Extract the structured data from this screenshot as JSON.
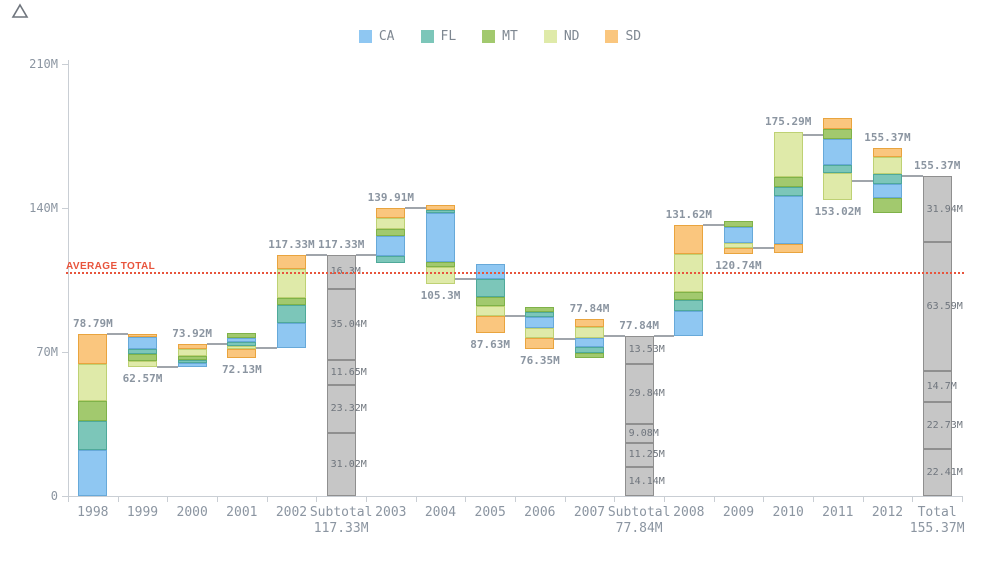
{
  "legend": {
    "items": [
      {
        "label": "CA",
        "color": "#8fc7f2"
      },
      {
        "label": "FL",
        "color": "#7cc6b9"
      },
      {
        "label": "MT",
        "color": "#a2c96e"
      },
      {
        "label": "ND",
        "color": "#dfeaa9"
      },
      {
        "label": "SD",
        "color": "#fac67e"
      }
    ]
  },
  "axis": {
    "y_ticks": [
      {
        "value": 0,
        "label": "0"
      },
      {
        "value": 70,
        "label": "70M"
      },
      {
        "value": 140,
        "label": "140M"
      },
      {
        "value": 210,
        "label": "210M"
      }
    ]
  },
  "chart_data": {
    "type": "waterfall",
    "unit": "M",
    "ylim": [
      0,
      210
    ],
    "legend_position": "top",
    "grid": false,
    "series": [
      "CA",
      "FL",
      "MT",
      "ND",
      "SD"
    ],
    "colors": {
      "CA": "#8fc7f2",
      "FL": "#7cc6b9",
      "MT": "#a2c96e",
      "ND": "#dfeaa9",
      "SD": "#fac67e",
      "subtotal": "#c6c6c6"
    },
    "borders": {
      "CA": "#67a9d9",
      "FL": "#4fa99a",
      "MT": "#7fb249",
      "ND": "#bed174",
      "SD": "#e9a43e",
      "subtotal": "#8f8f8f"
    },
    "average_line": {
      "label": "AVERAGE TOTAL",
      "value": 108.52,
      "color": "#e8543c"
    },
    "bars": [
      {
        "category": "1998",
        "xlabel_lines": [
          "1998"
        ],
        "kind": "flow",
        "bottom": 0,
        "top": 78.79,
        "value_label": "78.79M",
        "value_label_pos": "above",
        "segments": [
          {
            "series": "SD",
            "value": 14.3
          },
          {
            "series": "ND",
            "value": 18.6
          },
          {
            "series": "MT",
            "value": 9.2
          },
          {
            "series": "FL",
            "value": 13.8
          },
          {
            "series": "CA",
            "value": 22.89
          }
        ]
      },
      {
        "category": "1999",
        "xlabel_lines": [
          "1999"
        ],
        "kind": "flow",
        "bottom": 62.57,
        "top": 78.79,
        "value_label": "62.57M",
        "value_label_pos": "below",
        "segments": [
          {
            "series": "SD",
            "value": 1.1
          },
          {
            "series": "CA",
            "value": 6.6
          },
          {
            "series": "FL",
            "value": 1.8
          },
          {
            "series": "MT",
            "value": 3.8
          },
          {
            "series": "ND",
            "value": 2.92
          }
        ]
      },
      {
        "category": "2000",
        "xlabel_lines": [
          "2000"
        ],
        "kind": "flow",
        "bottom": 62.57,
        "top": 73.92,
        "value_label": "73.92M",
        "value_label_pos": "above",
        "segments": [
          {
            "series": "SD",
            "value": 2.5
          },
          {
            "series": "ND",
            "value": 4.45
          },
          {
            "series": "MT",
            "value": 1.5
          },
          {
            "series": "FL",
            "value": 1.0
          },
          {
            "series": "CA",
            "value": 1.9
          }
        ]
      },
      {
        "category": "2001",
        "xlabel_lines": [
          "2001"
        ],
        "kind": "flow",
        "bottom": 66.9,
        "top": 79.1,
        "value_label": "72.13M",
        "value_label_pos": "below",
        "segments": [
          {
            "series": "MT",
            "value": 2.1
          },
          {
            "series": "CA",
            "value": 1.5
          },
          {
            "series": "FL",
            "value": 1.5
          },
          {
            "series": "ND",
            "value": 1.3
          },
          {
            "series": "SD",
            "value": 5.8
          }
        ]
      },
      {
        "category": "2002",
        "xlabel_lines": [
          "2002"
        ],
        "kind": "flow",
        "bottom": 72.13,
        "top": 117.33,
        "value_label": "117.33M",
        "value_label_pos": "above",
        "segments": [
          {
            "series": "SD",
            "value": 7.0
          },
          {
            "series": "ND",
            "value": 14.6
          },
          {
            "series": "MT",
            "value": 2.6
          },
          {
            "series": "FL",
            "value": 8.8
          },
          {
            "series": "CA",
            "value": 12.2
          }
        ]
      },
      {
        "category": "Subtotal",
        "xlabel_lines": [
          "Subtotal",
          "117.33M"
        ],
        "kind": "subtotal",
        "bottom": 0,
        "top": 117.33,
        "value_label": "117.33M",
        "value_label_pos": "above",
        "segments": [
          {
            "series": "SD",
            "value": 16.3,
            "label": "16.3M"
          },
          {
            "series": "ND",
            "value": 35.04,
            "label": "35.04M"
          },
          {
            "series": "MT",
            "value": 11.65,
            "label": "11.65M"
          },
          {
            "series": "FL",
            "value": 23.32,
            "label": "23.32M"
          },
          {
            "series": "CA",
            "value": 31.02,
            "label": "31.02M"
          }
        ]
      },
      {
        "category": "2003",
        "xlabel_lines": [
          "2003"
        ],
        "kind": "flow",
        "bottom": 113.1,
        "top": 139.91,
        "value_label": "139.91M",
        "value_label_pos": "above",
        "segments": [
          {
            "series": "SD",
            "value": 4.9
          },
          {
            "series": "ND",
            "value": 4.9
          },
          {
            "series": "MT",
            "value": 3.3
          },
          {
            "series": "CA",
            "value": 10.8
          },
          {
            "series": "FL",
            "value": 2.91
          }
        ]
      },
      {
        "category": "2004",
        "xlabel_lines": [
          "2004"
        ],
        "kind": "flow",
        "bottom": 102.9,
        "top": 141.3,
        "value_label": "105.3M",
        "value_label_pos": "below",
        "segments": [
          {
            "series": "SD",
            "value": 1.3
          },
          {
            "series": "FL",
            "value": 1.0
          },
          {
            "series": "CA",
            "value": 26.0
          },
          {
            "series": "MT",
            "value": 1.7
          },
          {
            "series": "ND",
            "value": 8.6
          }
        ]
      },
      {
        "category": "2005",
        "xlabel_lines": [
          "2005"
        ],
        "kind": "flow",
        "bottom": 79.4,
        "top": 112.6,
        "value_label": "87.63M",
        "value_label_pos": "below",
        "segments": [
          {
            "series": "CA",
            "value": 7.3
          },
          {
            "series": "FL",
            "value": 8.9
          },
          {
            "series": "MT",
            "value": 4.0
          },
          {
            "series": "ND",
            "value": 4.4
          },
          {
            "series": "SD",
            "value": 8.6
          }
        ]
      },
      {
        "category": "2006",
        "xlabel_lines": [
          "2006"
        ],
        "kind": "flow",
        "bottom": 71.6,
        "top": 92.1,
        "value_label": "76.35M",
        "value_label_pos": "below",
        "segments": [
          {
            "series": "MT",
            "value": 2.4
          },
          {
            "series": "FL",
            "value": 1.8
          },
          {
            "series": "CA",
            "value": 5.8
          },
          {
            "series": "ND",
            "value": 4.9
          },
          {
            "series": "SD",
            "value": 5.6
          }
        ]
      },
      {
        "category": "2007",
        "xlabel_lines": [
          "2007"
        ],
        "kind": "flow",
        "bottom": 66.9,
        "top": 86.0,
        "value_label": "77.84M",
        "value_label_pos": "above",
        "segments": [
          {
            "series": "SD",
            "value": 4.0
          },
          {
            "series": "ND",
            "value": 5.8
          },
          {
            "series": "CA",
            "value": 4.4
          },
          {
            "series": "FL",
            "value": 2.4
          },
          {
            "series": "MT",
            "value": 2.5
          }
        ]
      },
      {
        "category": "Subtotal",
        "xlabel_lines": [
          "Subtotal",
          "77.84M"
        ],
        "kind": "subtotal",
        "bottom": 0,
        "top": 77.84,
        "value_label": "77.84M",
        "value_label_pos": "above",
        "segments": [
          {
            "series": "SD",
            "value": 13.53,
            "label": "13.53M"
          },
          {
            "series": "ND",
            "value": 29.84,
            "label": "29.84M"
          },
          {
            "series": "MT",
            "value": 9.08,
            "label": "9.08M"
          },
          {
            "series": "FL",
            "value": 11.25,
            "label": "11.25M"
          },
          {
            "series": "CA",
            "value": 14.14,
            "label": "14.14M"
          }
        ]
      },
      {
        "category": "2008",
        "xlabel_lines": [
          "2008"
        ],
        "kind": "flow",
        "bottom": 77.84,
        "top": 131.62,
        "value_label": "131.62M",
        "value_label_pos": "above",
        "segments": [
          {
            "series": "SD",
            "value": 14.3
          },
          {
            "series": "ND",
            "value": 19.0
          },
          {
            "series": "MT",
            "value": 3.7
          },
          {
            "series": "FL",
            "value": 4.4
          },
          {
            "series": "CA",
            "value": 12.38
          }
        ]
      },
      {
        "category": "2009",
        "xlabel_lines": [
          "2009"
        ],
        "kind": "flow",
        "bottom": 117.5,
        "top": 133.9,
        "value_label": "120.74M",
        "value_label_pos": "below",
        "segments": [
          {
            "series": "MT",
            "value": 2.6
          },
          {
            "series": "CA",
            "value": 9.2
          },
          {
            "series": "ND",
            "value": 1.9
          },
          {
            "series": "SD",
            "value": 2.7
          }
        ]
      },
      {
        "category": "2010",
        "xlabel_lines": [
          "2010"
        ],
        "kind": "flow",
        "bottom": 118.0,
        "top": 176.8,
        "value_label": "175.29M",
        "value_label_pos": "above",
        "segments": [
          {
            "series": "ND",
            "value": 22.7
          },
          {
            "series": "MT",
            "value": 4.0
          },
          {
            "series": "FL",
            "value": 3.7
          },
          {
            "series": "CA",
            "value": 24.6
          },
          {
            "series": "SD",
            "value": 3.8
          }
        ]
      },
      {
        "category": "2011",
        "xlabel_lines": [
          "2011"
        ],
        "kind": "flow",
        "bottom": 143.9,
        "top": 183.9,
        "value_label": "153.02M",
        "value_label_pos": "below",
        "segments": [
          {
            "series": "SD",
            "value": 5.2
          },
          {
            "series": "MT",
            "value": 4.6
          },
          {
            "series": "CA",
            "value": 13.3
          },
          {
            "series": "FL",
            "value": 3.3
          },
          {
            "series": "ND",
            "value": 13.6
          }
        ]
      },
      {
        "category": "2012",
        "xlabel_lines": [
          "2012"
        ],
        "kind": "flow",
        "bottom": 137.4,
        "top": 169.4,
        "value_label": "155.37M",
        "value_label_pos": "above",
        "segments": [
          {
            "series": "SD",
            "value": 4.4
          },
          {
            "series": "ND",
            "value": 8.4
          },
          {
            "series": "FL",
            "value": 4.9
          },
          {
            "series": "CA",
            "value": 6.7
          },
          {
            "series": "MT",
            "value": 7.6
          }
        ]
      },
      {
        "category": "Total",
        "xlabel_lines": [
          "Total",
          "155.37M"
        ],
        "kind": "total",
        "bottom": 0,
        "top": 155.37,
        "value_label": "155.37M",
        "value_label_pos": "above",
        "segments": [
          {
            "series": "SD",
            "value": 31.94,
            "label": "31.94M"
          },
          {
            "series": "ND",
            "value": 63.59,
            "label": "63.59M"
          },
          {
            "series": "MT",
            "value": 14.7,
            "label": "14.7M"
          },
          {
            "series": "FL",
            "value": 22.73,
            "label": "22.73M"
          },
          {
            "series": "CA",
            "value": 22.41,
            "label": "22.41M"
          }
        ]
      }
    ],
    "connector_levels": [
      78.79,
      62.57,
      73.92,
      72.13,
      117.33,
      117.33,
      139.91,
      105.3,
      87.63,
      76.35,
      77.84,
      77.84,
      131.62,
      120.74,
      175.29,
      153.02,
      155.37
    ]
  }
}
